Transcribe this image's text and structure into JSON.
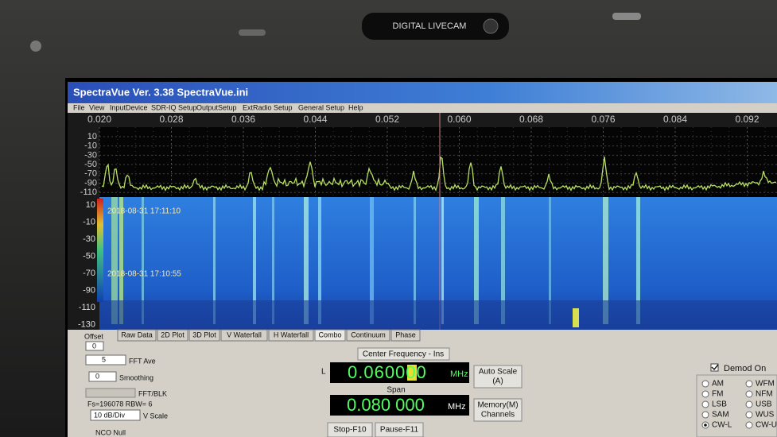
{
  "camera": {
    "label": "DIGITAL  LIVECAM"
  },
  "window": {
    "title": "SpectraVue Ver. 3.38  SpectraVue.ini"
  },
  "menu": [
    "File",
    "View",
    "InputDevice",
    "SDR-IQ Setup",
    "OutputSetup",
    "ExtRadio Setup",
    "General Setup",
    "Help"
  ],
  "frequency_scale": [
    "0.020",
    "0.028",
    "0.036",
    "0.044",
    "0.052",
    "0.060",
    "0.068",
    "0.076",
    "0.084",
    "0.092"
  ],
  "spectrum_scale": [
    "10",
    "-10",
    "-30",
    "-50",
    "-70",
    "-90",
    "-110"
  ],
  "waterfall_scale": [
    "10",
    "-10",
    "-30",
    "-50",
    "-70",
    "-90",
    "-110",
    "-130"
  ],
  "timestamps": [
    "2018-08-31 17:11:10",
    "2018-08-31 17:10:55"
  ],
  "tabs": [
    "Raw Data",
    "2D Plot",
    "3D Plot",
    "V Waterfall",
    "H Waterfall",
    "Combo",
    "Continuum",
    "Phase"
  ],
  "controls": {
    "offset_label": "Offset",
    "offset_value": "0",
    "fft_ave_value": "5",
    "fft_ave_label": "FFT Ave",
    "smoothing_value": "0",
    "smoothing_label": "Smoothing",
    "fft_blk_label": "FFT/BLK",
    "fs_info": "Fs=196078 RBW= 6",
    "vscale_value": "10 dB/Div",
    "vscale_label": "V Scale",
    "nco": "NCO Null"
  },
  "center": {
    "label": "Center Frequency - Ins",
    "side": "L",
    "value": "0.060000",
    "unit": "MHz"
  },
  "span": {
    "label": "Span",
    "value": "0.080 000",
    "unit": "MHz"
  },
  "auto_scale": [
    "Auto Scale",
    "(A)"
  ],
  "memory": [
    "Memory(M)",
    "Channels"
  ],
  "stop": "Stop-F10",
  "pause": "Pause-F11",
  "demod": {
    "label": "Demod On",
    "modes_left": [
      "AM",
      "FM",
      "LSB",
      "SAM",
      "CW-L"
    ],
    "modes_right": [
      "WFM",
      "NFM",
      "USB",
      "WUS",
      "CW-U"
    ]
  }
}
